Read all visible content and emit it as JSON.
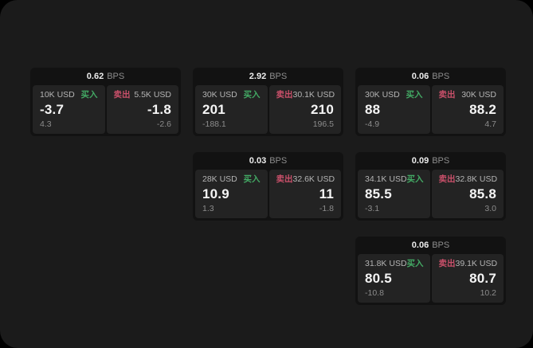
{
  "colors": {
    "buy": "#43a964",
    "sell": "#c9506a",
    "page_bg": "#1b1b1b",
    "card_bg": "#121212",
    "panel_bg": "#232323"
  },
  "labels": {
    "bps": "BPS",
    "buy": "买入",
    "sell": "卖出"
  },
  "cards": [
    {
      "bps": "0.62",
      "buy": {
        "amount": "10K USD",
        "value": "-3.7",
        "sub": "4.3"
      },
      "sell": {
        "amount": "5.5K USD",
        "value": "-1.8",
        "sub": "-2.6"
      }
    },
    {
      "bps": "2.92",
      "buy": {
        "amount": "30K USD",
        "value": "201",
        "sub": "-188.1"
      },
      "sell": {
        "amount": "30.1K USD",
        "value": "210",
        "sub": "196.5"
      }
    },
    {
      "bps": "0.06",
      "buy": {
        "amount": "30K USD",
        "value": "88",
        "sub": "-4.9"
      },
      "sell": {
        "amount": "30K USD",
        "value": "88.2",
        "sub": "4.7"
      }
    },
    {
      "bps": "0.03",
      "buy": {
        "amount": "28K USD",
        "value": "10.9",
        "sub": "1.3"
      },
      "sell": {
        "amount": "32.6K USD",
        "value": "11",
        "sub": "-1.8"
      }
    },
    {
      "bps": "0.09",
      "buy": {
        "amount": "34.1K USD",
        "value": "85.5",
        "sub": "-3.1"
      },
      "sell": {
        "amount": "32.8K USD",
        "value": "85.8",
        "sub": "3.0"
      }
    },
    {
      "bps": "0.06",
      "buy": {
        "amount": "31.8K USD",
        "value": "80.5",
        "sub": "-10.8"
      },
      "sell": {
        "amount": "39.1K USD",
        "value": "80.7",
        "sub": "10.2"
      }
    }
  ]
}
